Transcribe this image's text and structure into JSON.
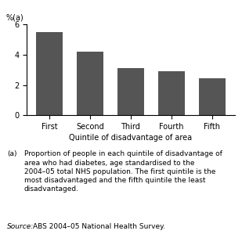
{
  "chart_data": {
    "type": "bar",
    "categories": [
      "First",
      "Second",
      "Third",
      "Fourth",
      "Fifth"
    ],
    "values": [
      5.5,
      4.2,
      3.1,
      2.9,
      2.45
    ],
    "color": "#555555",
    "ylabel": "%(a)",
    "xlabel": "Quintile of disadvantage of area",
    "ylim": [
      0,
      6
    ],
    "yticks": [
      0,
      2,
      4,
      6
    ],
    "grid": false,
    "annotations": [
      "(a)",
      "Proportion of people in each quintile of disadvantage of\narea who had diabetes, age standardised to the\n2004–05 total NHS population. The first quintile is the\nmost disadvantaged and the fifth quintile the least\ndisadvantaged.",
      "Source:",
      "ABS 2004–05 National Health Survey."
    ]
  }
}
